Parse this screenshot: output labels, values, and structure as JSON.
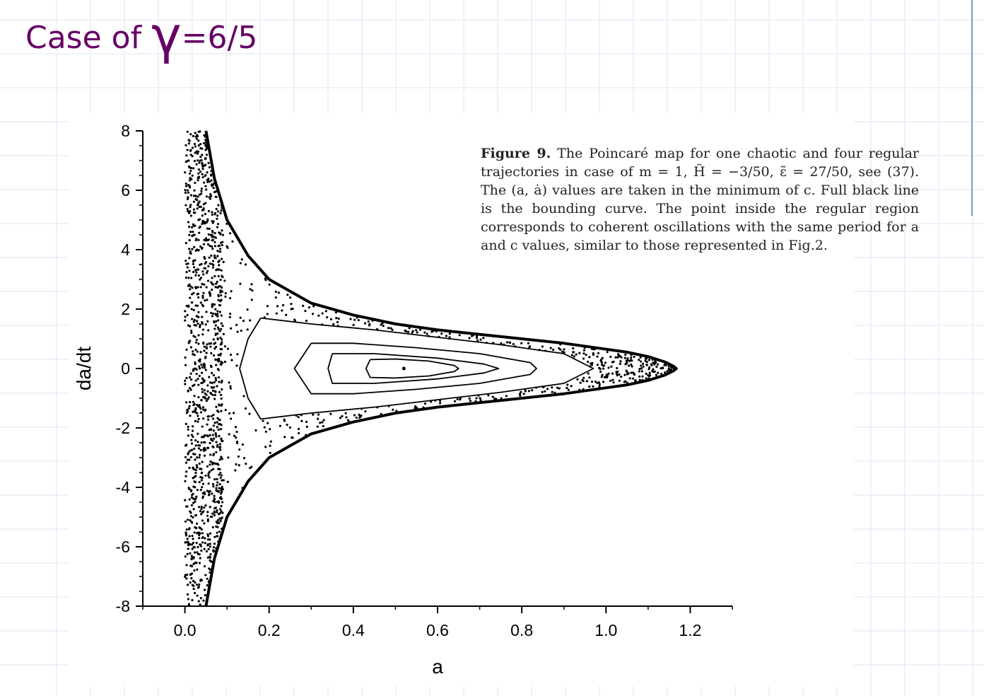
{
  "slide": {
    "title_prefix": "Case of ",
    "title_symbol": "γ",
    "title_suffix": "=6/5"
  },
  "caption": {
    "label": "Figure 9.",
    "text": "The Poincaré map for one chaotic and four regular trajectories in case of m = 1, H̃ = −3/50, ε̃ = 27/50, see (37). The (a, ȧ) values are taken in the minimum of c. Full black line is the bounding curve. The point inside the regular region corresponds to coherent oscillations with the same period for a and c values, similar to those represented in Fig.2."
  },
  "colors": {
    "title": "#660066",
    "grid": "#dfe6f5",
    "ink": "#000000",
    "accent": "#7a9ccc"
  },
  "chart_data": {
    "type": "scatter",
    "xlabel": "a",
    "ylabel": "da/dt",
    "xlim": [
      -0.1,
      1.3
    ],
    "ylim": [
      -8,
      8
    ],
    "x_ticks": [
      "0.0",
      "0.2",
      "0.4",
      "0.6",
      "0.8",
      "1.0",
      "1.2"
    ],
    "x_tick_values": [
      0.0,
      0.2,
      0.4,
      0.6,
      0.8,
      1.0,
      1.2
    ],
    "y_ticks": [
      "8",
      "6",
      "4",
      "2",
      "0",
      "-2",
      "-4",
      "-6",
      "-8"
    ],
    "y_tick_values": [
      8,
      6,
      4,
      2,
      0,
      -2,
      -4,
      -6,
      -8
    ],
    "bounding_curve": {
      "x": [
        0.05,
        0.07,
        0.1,
        0.15,
        0.2,
        0.3,
        0.4,
        0.5,
        0.6,
        0.7,
        0.8,
        0.9,
        1.0,
        1.05,
        1.1,
        1.14,
        1.16,
        1.167
      ],
      "y": [
        8.0,
        6.4,
        5.0,
        3.8,
        3.0,
        2.2,
        1.8,
        1.5,
        1.3,
        1.15,
        1.0,
        0.85,
        0.65,
        0.55,
        0.4,
        0.22,
        0.08,
        0.0
      ]
    },
    "regular_orbits": [
      {
        "x": [
          0.18,
          0.3,
          0.45,
          0.6,
          0.75,
          0.9,
          0.97,
          0.9,
          0.75,
          0.6,
          0.45,
          0.3,
          0.18,
          0.15,
          0.13,
          0.15,
          0.18
        ],
        "y": [
          1.7,
          1.5,
          1.3,
          1.05,
          0.8,
          0.5,
          0.0,
          -0.5,
          -0.8,
          -1.05,
          -1.3,
          -1.5,
          -1.7,
          -1.0,
          0.0,
          1.0,
          1.7
        ]
      },
      {
        "x": [
          0.3,
          0.4,
          0.55,
          0.7,
          0.82,
          0.835,
          0.82,
          0.7,
          0.55,
          0.4,
          0.3,
          0.26,
          0.3
        ],
        "y": [
          0.85,
          0.85,
          0.7,
          0.5,
          0.2,
          0.0,
          -0.2,
          -0.5,
          -0.7,
          -0.85,
          -0.85,
          0.0,
          0.85
        ]
      },
      {
        "x": [
          0.35,
          0.45,
          0.6,
          0.71,
          0.745,
          0.71,
          0.6,
          0.45,
          0.35,
          0.34,
          0.35
        ],
        "y": [
          0.5,
          0.5,
          0.35,
          0.15,
          0.0,
          -0.15,
          -0.35,
          -0.5,
          -0.5,
          0.0,
          0.5
        ]
      },
      {
        "x": [
          0.44,
          0.5,
          0.58,
          0.64,
          0.65,
          0.64,
          0.58,
          0.5,
          0.44,
          0.43,
          0.44
        ],
        "y": [
          0.3,
          0.32,
          0.25,
          0.1,
          0.0,
          -0.1,
          -0.25,
          -0.32,
          -0.3,
          0.0,
          0.3
        ]
      }
    ],
    "fixed_point": {
      "x": 0.52,
      "y": 0.0
    }
  }
}
